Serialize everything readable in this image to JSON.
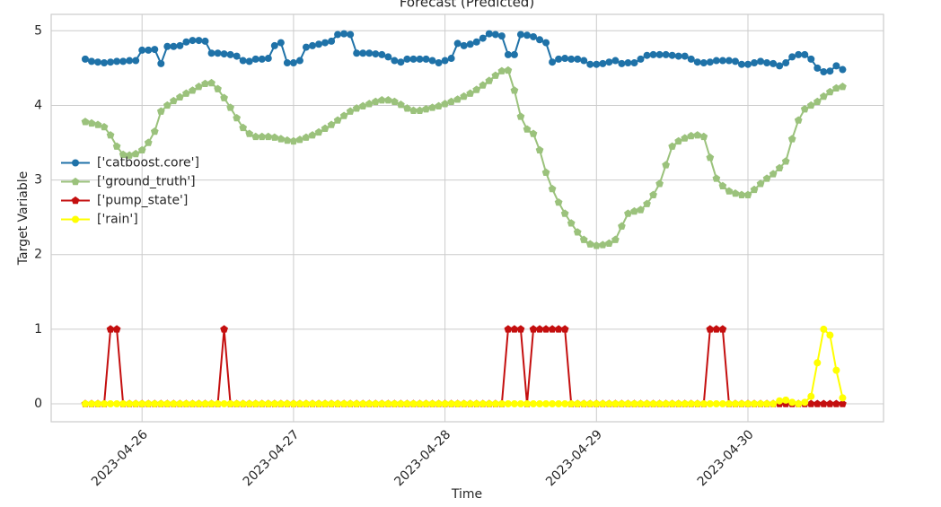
{
  "chart_data": {
    "type": "line",
    "title": "Forecast (Predicted)",
    "xlabel": "Time",
    "ylabel": "Target Variable",
    "legend": "center left",
    "grid": true,
    "xlim": [
      "2023-04-25 09:36",
      "2023-04-30 21:29"
    ],
    "xticks": [
      "2023-04-26",
      "2023-04-27",
      "2023-04-28",
      "2023-04-29",
      "2023-04-30"
    ],
    "ylim": [
      -0.24,
      5.22
    ],
    "yticks": [
      0,
      1,
      2,
      3,
      4,
      5
    ],
    "x": [
      "2023-04-25 15:00",
      "2023-04-25 16:00",
      "2023-04-25 17:00",
      "2023-04-25 18:00",
      "2023-04-25 19:00",
      "2023-04-25 20:00",
      "2023-04-25 21:00",
      "2023-04-25 22:00",
      "2023-04-25 23:00",
      "2023-04-26 00:00",
      "2023-04-26 01:00",
      "2023-04-26 02:00",
      "2023-04-26 03:00",
      "2023-04-26 04:00",
      "2023-04-26 05:00",
      "2023-04-26 06:00",
      "2023-04-26 07:00",
      "2023-04-26 08:00",
      "2023-04-26 09:00",
      "2023-04-26 10:00",
      "2023-04-26 11:00",
      "2023-04-26 12:00",
      "2023-04-26 13:00",
      "2023-04-26 14:00",
      "2023-04-26 15:00",
      "2023-04-26 16:00",
      "2023-04-26 17:00",
      "2023-04-26 18:00",
      "2023-04-26 19:00",
      "2023-04-26 20:00",
      "2023-04-26 21:00",
      "2023-04-26 22:00",
      "2023-04-26 23:00",
      "2023-04-27 00:00",
      "2023-04-27 01:00",
      "2023-04-27 02:00",
      "2023-04-27 03:00",
      "2023-04-27 04:00",
      "2023-04-27 05:00",
      "2023-04-27 06:00",
      "2023-04-27 07:00",
      "2023-04-27 08:00",
      "2023-04-27 09:00",
      "2023-04-27 10:00",
      "2023-04-27 11:00",
      "2023-04-27 12:00",
      "2023-04-27 13:00",
      "2023-04-27 14:00",
      "2023-04-27 15:00",
      "2023-04-27 16:00",
      "2023-04-27 17:00",
      "2023-04-27 18:00",
      "2023-04-27 19:00",
      "2023-04-27 20:00",
      "2023-04-27 21:00",
      "2023-04-27 22:00",
      "2023-04-27 23:00",
      "2023-04-28 00:00",
      "2023-04-28 01:00",
      "2023-04-28 02:00",
      "2023-04-28 03:00",
      "2023-04-28 04:00",
      "2023-04-28 05:00",
      "2023-04-28 06:00",
      "2023-04-28 07:00",
      "2023-04-28 08:00",
      "2023-04-28 09:00",
      "2023-04-28 10:00",
      "2023-04-28 11:00",
      "2023-04-28 12:00",
      "2023-04-28 13:00",
      "2023-04-28 14:00",
      "2023-04-28 15:00",
      "2023-04-28 16:00",
      "2023-04-28 17:00",
      "2023-04-28 18:00",
      "2023-04-28 19:00",
      "2023-04-28 20:00",
      "2023-04-28 21:00",
      "2023-04-28 22:00",
      "2023-04-28 23:00",
      "2023-04-29 00:00",
      "2023-04-29 01:00",
      "2023-04-29 02:00",
      "2023-04-29 03:00",
      "2023-04-29 04:00",
      "2023-04-29 05:00",
      "2023-04-29 06:00",
      "2023-04-29 07:00",
      "2023-04-29 08:00",
      "2023-04-29 09:00",
      "2023-04-29 10:00",
      "2023-04-29 11:00",
      "2023-04-29 12:00",
      "2023-04-29 13:00",
      "2023-04-29 14:00",
      "2023-04-29 15:00",
      "2023-04-29 16:00",
      "2023-04-29 17:00",
      "2023-04-29 18:00",
      "2023-04-29 19:00",
      "2023-04-29 20:00",
      "2023-04-29 21:00",
      "2023-04-29 22:00",
      "2023-04-29 23:00",
      "2023-04-30 00:00",
      "2023-04-30 01:00",
      "2023-04-30 02:00",
      "2023-04-30 03:00",
      "2023-04-30 04:00",
      "2023-04-30 05:00",
      "2023-04-30 06:00",
      "2023-04-30 07:00",
      "2023-04-30 08:00",
      "2023-04-30 09:00",
      "2023-04-30 10:00",
      "2023-04-30 11:00",
      "2023-04-30 12:00",
      "2023-04-30 13:00",
      "2023-04-30 14:00",
      "2023-04-30 15:00"
    ],
    "series": [
      {
        "name": "['catboost.core']",
        "color": "#1f72a8",
        "marker": "circle",
        "values": [
          4.62,
          4.59,
          4.58,
          4.57,
          4.58,
          4.59,
          4.59,
          4.6,
          4.6,
          4.74,
          4.74,
          4.75,
          4.56,
          4.79,
          4.79,
          4.8,
          4.85,
          4.87,
          4.87,
          4.86,
          4.7,
          4.7,
          4.69,
          4.68,
          4.66,
          4.6,
          4.59,
          4.62,
          4.62,
          4.63,
          4.8,
          4.84,
          4.57,
          4.57,
          4.6,
          4.78,
          4.8,
          4.82,
          4.84,
          4.86,
          4.95,
          4.96,
          4.95,
          4.7,
          4.7,
          4.7,
          4.69,
          4.68,
          4.65,
          4.6,
          4.58,
          4.62,
          4.62,
          4.62,
          4.62,
          4.6,
          4.57,
          4.6,
          4.63,
          4.83,
          4.8,
          4.82,
          4.85,
          4.9,
          4.96,
          4.95,
          4.93,
          4.68,
          4.68,
          4.95,
          4.94,
          4.92,
          4.88,
          4.84,
          4.58,
          4.62,
          4.63,
          4.62,
          4.62,
          4.6,
          4.55,
          4.55,
          4.56,
          4.58,
          4.6,
          4.56,
          4.57,
          4.57,
          4.62,
          4.67,
          4.68,
          4.68,
          4.68,
          4.67,
          4.66,
          4.66,
          4.62,
          4.58,
          4.57,
          4.58,
          4.6,
          4.6,
          4.6,
          4.59,
          4.55,
          4.55,
          4.57,
          4.59,
          4.57,
          4.56,
          4.53,
          4.57,
          4.65,
          4.68,
          4.68,
          4.62,
          4.5,
          4.45,
          4.46,
          4.53,
          4.48
        ]
      },
      {
        "name": "['ground_truth']",
        "color": "#9bc27c",
        "marker": "pentagon",
        "values": [
          3.78,
          3.76,
          3.74,
          3.71,
          3.6,
          3.45,
          3.34,
          3.33,
          3.35,
          3.4,
          3.5,
          3.65,
          3.92,
          4.0,
          4.06,
          4.11,
          4.16,
          4.2,
          4.25,
          4.29,
          4.3,
          4.22,
          4.1,
          3.97,
          3.83,
          3.7,
          3.62,
          3.58,
          3.58,
          3.58,
          3.57,
          3.55,
          3.53,
          3.52,
          3.54,
          3.57,
          3.6,
          3.64,
          3.69,
          3.74,
          3.8,
          3.86,
          3.92,
          3.96,
          3.99,
          4.02,
          4.05,
          4.07,
          4.07,
          4.05,
          4.01,
          3.96,
          3.93,
          3.93,
          3.95,
          3.97,
          3.99,
          4.02,
          4.05,
          4.08,
          4.12,
          4.16,
          4.21,
          4.27,
          4.33,
          4.4,
          4.46,
          4.47,
          4.2,
          3.85,
          3.68,
          3.62,
          3.4,
          3.1,
          2.88,
          2.7,
          2.55,
          2.42,
          2.3,
          2.2,
          2.14,
          2.12,
          2.13,
          2.15,
          2.2,
          2.38,
          2.55,
          2.58,
          2.6,
          2.68,
          2.8,
          2.95,
          3.2,
          3.45,
          3.52,
          3.56,
          3.59,
          3.6,
          3.58,
          3.3,
          3.02,
          2.92,
          2.85,
          2.82,
          2.8,
          2.8,
          2.87,
          2.95,
          3.02,
          3.08,
          3.16,
          3.25,
          3.55,
          3.8,
          3.95,
          4.0,
          4.05,
          4.12,
          4.18,
          4.23,
          4.25
        ]
      },
      {
        "name": "['pump_state']",
        "color": "#c40f0f",
        "marker": "pentagon",
        "values": [
          0,
          0,
          0,
          0,
          1,
          1,
          0,
          0,
          0,
          0,
          0,
          0,
          0,
          0,
          0,
          0,
          0,
          0,
          0,
          0,
          0,
          0,
          1,
          0,
          0,
          0,
          0,
          0,
          0,
          0,
          0,
          0,
          0,
          0,
          0,
          0,
          0,
          0,
          0,
          0,
          0,
          0,
          0,
          0,
          0,
          0,
          0,
          0,
          0,
          0,
          0,
          0,
          0,
          0,
          0,
          0,
          0,
          0,
          0,
          0,
          0,
          0,
          0,
          0,
          0,
          0,
          0,
          1,
          1,
          1,
          0,
          1,
          1,
          1,
          1,
          1,
          1,
          0,
          0,
          0,
          0,
          0,
          0,
          0,
          0,
          0,
          0,
          0,
          0,
          0,
          0,
          0,
          0,
          0,
          0,
          0,
          0,
          0,
          0,
          1,
          1,
          1,
          0,
          0,
          0,
          0,
          0,
          0,
          0,
          0,
          0,
          0,
          0,
          0,
          0,
          0,
          0,
          0,
          0,
          0,
          0
        ]
      },
      {
        "name": "['rain']",
        "color": "#ffff00",
        "marker": "circle",
        "values": [
          0,
          0,
          0,
          0,
          0,
          0,
          0,
          0,
          0,
          0,
          0,
          0,
          0,
          0,
          0,
          0,
          0,
          0,
          0,
          0,
          0,
          0,
          0,
          0,
          0,
          0,
          0,
          0,
          0,
          0,
          0,
          0,
          0,
          0,
          0,
          0,
          0,
          0,
          0,
          0,
          0,
          0,
          0,
          0,
          0,
          0,
          0,
          0,
          0,
          0,
          0,
          0,
          0,
          0,
          0,
          0,
          0,
          0,
          0,
          0,
          0,
          0,
          0,
          0,
          0,
          0,
          0,
          0,
          0,
          0,
          0,
          0,
          0,
          0,
          0,
          0,
          0,
          0,
          0,
          0,
          0,
          0,
          0,
          0,
          0,
          0,
          0,
          0,
          0,
          0,
          0,
          0,
          0,
          0,
          0,
          0,
          0,
          0,
          0,
          0,
          0,
          0,
          0,
          0,
          0,
          0,
          0,
          0,
          0,
          0,
          0.04,
          0.05,
          0.02,
          0,
          0.02,
          0.1,
          0.55,
          1.0,
          0.92,
          0.45,
          0.08
        ]
      }
    ]
  }
}
